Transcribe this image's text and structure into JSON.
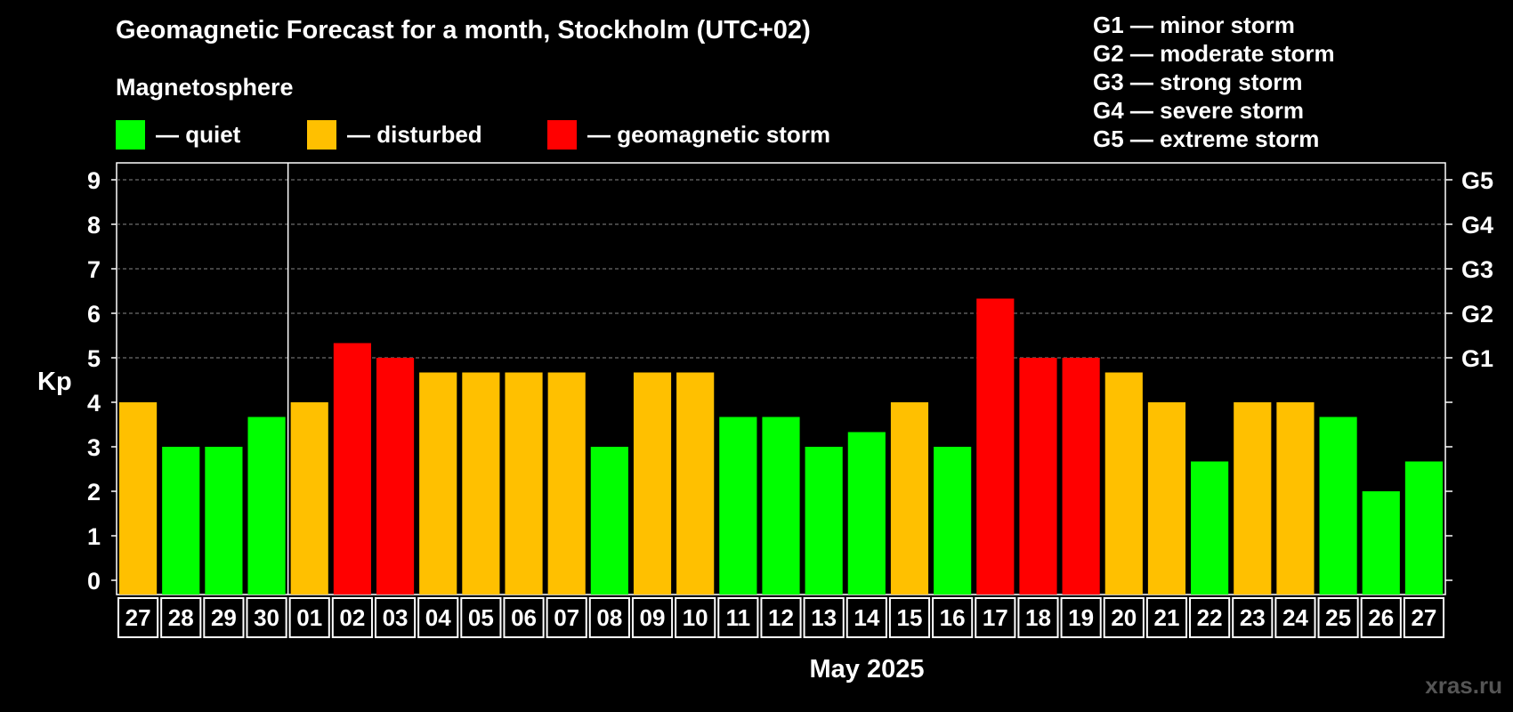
{
  "title": "Geomagnetic Forecast for a month, Stockholm (UTC+02)",
  "magnetosphere_label": "Magnetosphere",
  "legend": [
    {
      "label": "— quiet",
      "color": "#00ff00"
    },
    {
      "label": "— disturbed",
      "color": "#ffc000"
    },
    {
      "label": "— geomagnetic storm",
      "color": "#ff0000"
    }
  ],
  "g_legend": [
    "G1 — minor storm",
    "G2 — moderate storm",
    "G3 — strong storm",
    "G4 — severe storm",
    "G5 — extreme storm"
  ],
  "month_label": "May 2025",
  "watermark": "xras.ru",
  "chart_data": {
    "type": "bar",
    "ylabel": "Kp",
    "ylim": [
      0,
      9
    ],
    "yticks": [
      "0",
      "1",
      "2",
      "3",
      "4",
      "5",
      "6",
      "7",
      "8",
      "9"
    ],
    "right_ticks": [
      {
        "value": 5,
        "label": "G1"
      },
      {
        "value": 6,
        "label": "G2"
      },
      {
        "value": 7,
        "label": "G3"
      },
      {
        "value": 8,
        "label": "G4"
      },
      {
        "value": 9,
        "label": "G5"
      }
    ],
    "grid_values": [
      5,
      6,
      7,
      8,
      9
    ],
    "month_separator_after_index": 3,
    "categories": [
      "27",
      "28",
      "29",
      "30",
      "01",
      "02",
      "03",
      "04",
      "05",
      "06",
      "07",
      "08",
      "09",
      "10",
      "11",
      "12",
      "13",
      "14",
      "15",
      "16",
      "17",
      "18",
      "19",
      "20",
      "21",
      "22",
      "23",
      "24",
      "25",
      "26",
      "27"
    ],
    "values": [
      4.0,
      3.0,
      3.0,
      3.67,
      4.0,
      5.33,
      5.0,
      4.67,
      4.67,
      4.67,
      4.67,
      3.0,
      4.67,
      4.67,
      3.67,
      3.67,
      3.0,
      3.33,
      4.0,
      3.0,
      6.33,
      5.0,
      5.0,
      4.67,
      4.0,
      2.67,
      4.0,
      4.0,
      3.67,
      2.0,
      2.67
    ],
    "levels": [
      "disturbed",
      "quiet",
      "quiet",
      "quiet",
      "disturbed",
      "storm",
      "storm",
      "disturbed",
      "disturbed",
      "disturbed",
      "disturbed",
      "quiet",
      "disturbed",
      "disturbed",
      "quiet",
      "quiet",
      "quiet",
      "quiet",
      "disturbed",
      "quiet",
      "storm",
      "storm",
      "storm",
      "disturbed",
      "disturbed",
      "quiet",
      "disturbed",
      "disturbed",
      "quiet",
      "quiet",
      "quiet"
    ],
    "level_colors": {
      "quiet": "#00ff00",
      "disturbed": "#ffc000",
      "storm": "#ff0000"
    }
  }
}
